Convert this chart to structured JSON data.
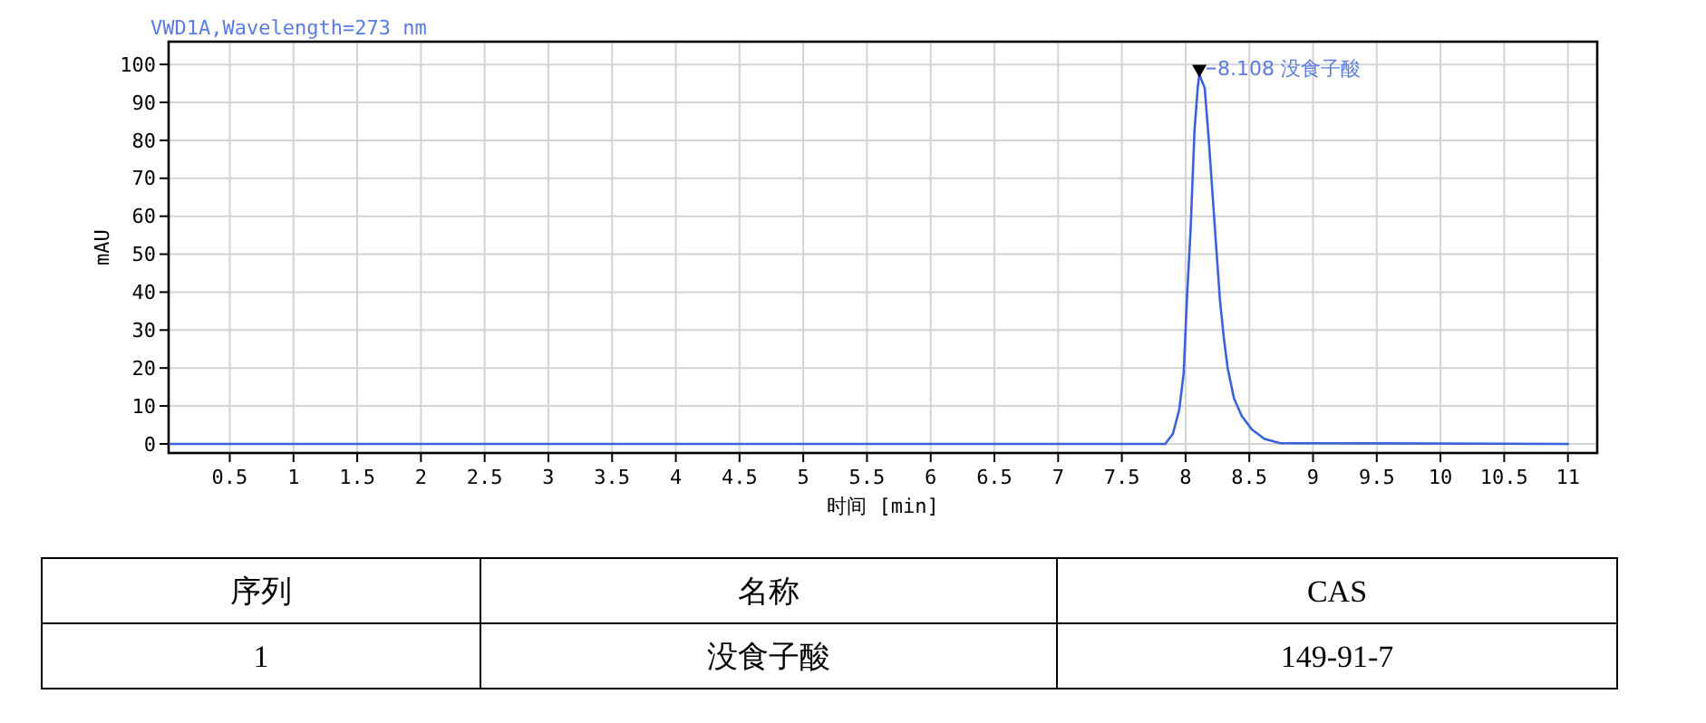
{
  "chart_data": {
    "type": "line",
    "title": "VWD1A,Wavelength=273 nm",
    "xlabel": "时间 [min]",
    "ylabel": "mAU",
    "xlim": [
      0.02,
      11.23
    ],
    "ylim": [
      -2.4,
      106
    ],
    "xticks": [
      0.5,
      1,
      1.5,
      2,
      2.5,
      3,
      3.5,
      4,
      4.5,
      5,
      5.5,
      6,
      6.5,
      7,
      7.5,
      8,
      8.5,
      9,
      9.5,
      10,
      10.5,
      11
    ],
    "yticks": [
      0,
      10,
      20,
      30,
      40,
      50,
      60,
      70,
      80,
      90,
      100
    ],
    "grid": true,
    "series": [
      {
        "color": "#3b62d9",
        "x": [
          0.03,
          3.27,
          7.84,
          7.9,
          7.95,
          7.985,
          8.01,
          8.04,
          8.07,
          8.095,
          8.108,
          8.124,
          8.15,
          8.18,
          8.21,
          8.24,
          8.27,
          8.3,
          8.33,
          8.38,
          8.44,
          8.52,
          8.62,
          8.74,
          11.0
        ],
        "values": [
          0,
          0,
          0,
          2.6,
          9,
          18.6,
          37.8,
          57,
          82.6,
          93.8,
          97.5,
          96,
          93.8,
          81,
          66.6,
          52,
          37.8,
          28,
          20,
          12,
          7.4,
          3.8,
          1.3,
          0.2,
          0
        ]
      }
    ],
    "annotations": [
      {
        "text": "8.108 没食子酸",
        "x": 8.108,
        "y": 97.5
      },
      "序列",
      "名称",
      "CAS",
      "1",
      "没食子酸",
      "149-91-7"
    ]
  }
}
